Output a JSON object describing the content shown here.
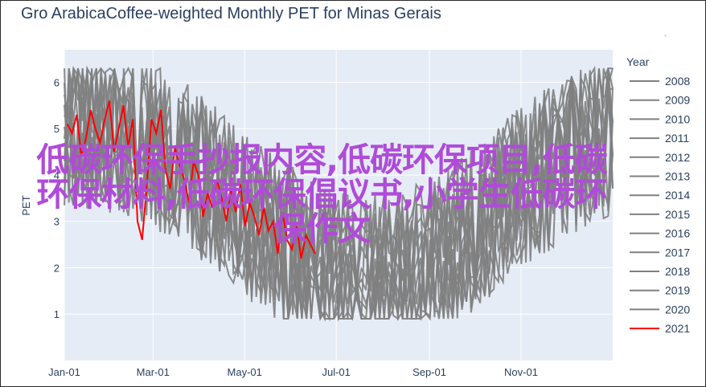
{
  "chart_data": {
    "type": "line",
    "title": "Gro ArabicaCoffee-weighted Monthly PET for Minas Gerais",
    "ylabel": "PET",
    "xlabel": "",
    "x_ticks": [
      "Jan-01",
      "Mar-01",
      "May-01",
      "Jul-01",
      "Sep-01",
      "Nov-01"
    ],
    "y_ticks": [
      1,
      2,
      3,
      4,
      5,
      6
    ],
    "ylim": [
      0,
      6.7
    ],
    "grid": true,
    "legend": {
      "title": "Year",
      "placement": "right"
    },
    "colors": {
      "grey": "#808080",
      "highlight": "#ff0000",
      "plot_bg": "#e5ecf6",
      "text": "#2a3f5f"
    },
    "series": [
      {
        "name": "2008",
        "summary": {
          "min": 0.9,
          "max": 6.3
        }
      },
      {
        "name": "2009",
        "summary": {
          "min": 0.9,
          "max": 6.3
        }
      },
      {
        "name": "2010",
        "summary": {
          "min": 0.9,
          "max": 6.3
        }
      },
      {
        "name": "2011",
        "summary": {
          "min": 0.9,
          "max": 6.3
        }
      },
      {
        "name": "2012",
        "summary": {
          "min": 0.9,
          "max": 6.3
        }
      },
      {
        "name": "2013",
        "summary": {
          "min": 0.9,
          "max": 6.3
        }
      },
      {
        "name": "2014",
        "summary": {
          "min": 0.9,
          "max": 6.3
        }
      },
      {
        "name": "2015",
        "summary": {
          "min": 0.9,
          "max": 6.3
        }
      },
      {
        "name": "2016",
        "summary": {
          "min": 0.9,
          "max": 6.3
        }
      },
      {
        "name": "2017",
        "summary": {
          "min": 0.9,
          "max": 6.3
        }
      },
      {
        "name": "2018",
        "summary": {
          "min": 0.9,
          "max": 6.3
        }
      },
      {
        "name": "2019",
        "summary": {
          "min": 0.9,
          "max": 6.3
        }
      },
      {
        "name": "2020",
        "summary": {
          "min": 0.9,
          "max": 6.3
        }
      },
      {
        "name": "2021",
        "highlight": true,
        "x_end": "Jun-17",
        "values": [
          5.1,
          4.9,
          5.3,
          4.4,
          4.8,
          5.4,
          5.0,
          4.7,
          5.2,
          5.6,
          4.5,
          5.0,
          5.5,
          4.6,
          5.2,
          3.0,
          2.6,
          3.8,
          5.2,
          4.9,
          5.4,
          4.1,
          3.7,
          4.6,
          4.2,
          3.9,
          3.4,
          4.3,
          4.0,
          3.1,
          3.6,
          3.3,
          3.9,
          3.5,
          3.0,
          3.7,
          3.2,
          3.8,
          2.9,
          3.4,
          3.1,
          2.7,
          3.3,
          2.8,
          3.0,
          2.3,
          3.2,
          2.6,
          2.4,
          2.9,
          2.2,
          2.7,
          2.5,
          2.3
        ]
      }
    ]
  },
  "overlay_text": {
    "line1": "低碳环保手抄报内容,低碳环保项目,低碳",
    "line2": "环保材料,低碳环保倡议书,小学生低碳环",
    "line3": "保作文"
  }
}
